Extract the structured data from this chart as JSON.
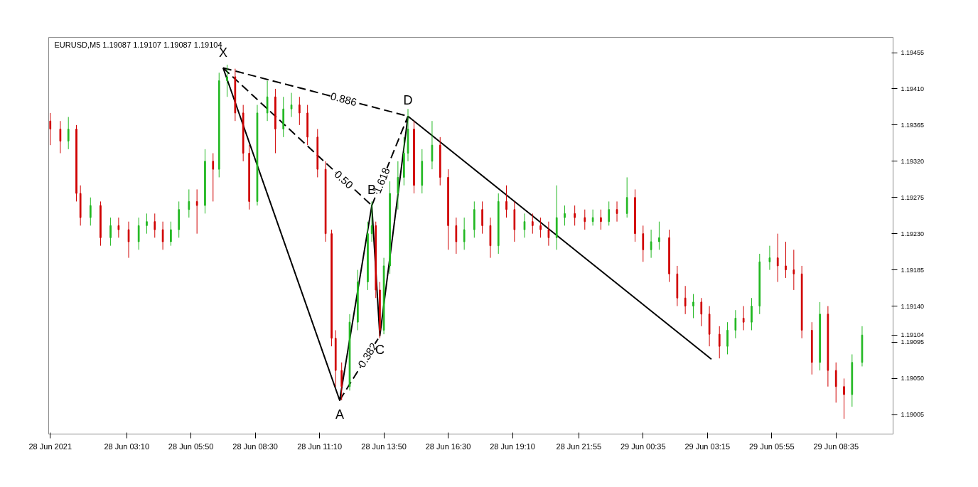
{
  "chart_data": {
    "type": "candlestick",
    "title": "EURUSD,M5  1.19087 1.19107 1.19087 1.19104",
    "x": [
      "2021-06-28T00:00",
      "2021-06-28T00:25",
      "2021-06-28T00:45",
      "2021-06-28T01:05",
      "2021-06-28T01:15",
      "2021-06-28T01:40",
      "2021-06-28T02:05",
      "2021-06-28T02:30",
      "2021-06-28T02:50",
      "2021-06-28T03:15",
      "2021-06-28T03:40",
      "2021-06-28T04:00",
      "2021-06-28T04:20",
      "2021-06-28T04:40",
      "2021-06-28T05:00",
      "2021-06-28T05:20",
      "2021-06-28T05:45",
      "2021-06-28T06:05",
      "2021-06-28T06:25",
      "2021-06-28T06:45",
      "2021-06-28T07:00",
      "2021-06-28T07:20",
      "2021-06-28T07:40",
      "2021-06-28T08:00",
      "2021-06-28T08:15",
      "2021-06-28T08:35",
      "2021-06-28T09:00",
      "2021-06-28T09:20",
      "2021-06-28T09:40",
      "2021-06-28T10:00",
      "2021-06-28T10:20",
      "2021-06-28T10:40",
      "2021-06-28T11:05",
      "2021-06-28T11:25",
      "2021-06-28T11:40",
      "2021-06-28T11:50",
      "2021-06-28T12:05",
      "2021-06-28T12:25",
      "2021-06-28T12:45",
      "2021-06-28T13:10",
      "2021-06-28T13:20",
      "2021-06-28T13:30",
      "2021-06-28T13:40",
      "2021-06-28T13:50",
      "2021-06-28T14:05",
      "2021-06-28T14:25",
      "2021-06-28T14:40",
      "2021-06-28T14:50",
      "2021-06-28T15:05",
      "2021-06-28T15:25",
      "2021-06-28T15:50",
      "2021-06-28T16:10",
      "2021-06-28T16:30",
      "2021-06-28T16:50",
      "2021-06-28T17:10",
      "2021-06-28T17:35",
      "2021-06-28T17:55",
      "2021-06-28T18:15",
      "2021-06-28T18:35",
      "2021-06-28T18:55",
      "2021-06-28T19:15",
      "2021-06-28T19:40",
      "2021-06-28T20:00",
      "2021-06-28T20:20",
      "2021-06-28T20:40",
      "2021-06-28T21:00",
      "2021-06-28T21:20",
      "2021-06-28T21:45",
      "2021-06-28T22:10",
      "2021-06-28T22:30",
      "2021-06-28T22:50",
      "2021-06-28T23:10",
      "2021-06-28T23:30",
      "2021-06-28T23:55",
      "2021-06-29T00:15",
      "2021-06-29T00:35",
      "2021-06-29T00:55",
      "2021-06-29T01:15",
      "2021-06-29T01:40",
      "2021-06-29T02:00",
      "2021-06-29T02:20",
      "2021-06-29T02:40",
      "2021-06-29T03:00",
      "2021-06-29T03:20",
      "2021-06-29T03:45",
      "2021-06-29T04:05",
      "2021-06-29T04:25",
      "2021-06-29T04:45",
      "2021-06-29T05:05",
      "2021-06-29T05:25",
      "2021-06-29T05:50",
      "2021-06-29T06:10",
      "2021-06-29T06:30",
      "2021-06-29T06:50",
      "2021-06-29T07:10",
      "2021-06-29T07:35",
      "2021-06-29T07:55",
      "2021-06-29T08:15",
      "2021-06-29T08:35",
      "2021-06-29T08:55",
      "2021-06-29T09:15",
      "2021-06-29T09:40"
    ],
    "ohlc": [
      [
        1.1937,
        1.1938,
        1.1934,
        1.1936
      ],
      [
        1.1936,
        1.1937,
        1.1933,
        1.19345
      ],
      [
        1.19345,
        1.19375,
        1.19335,
        1.1936
      ],
      [
        1.1936,
        1.19365,
        1.1927,
        1.1928
      ],
      [
        1.1928,
        1.1929,
        1.1924,
        1.1925
      ],
      [
        1.1925,
        1.19275,
        1.1924,
        1.19265
      ],
      [
        1.19265,
        1.1927,
        1.19215,
        1.19225
      ],
      [
        1.19225,
        1.1925,
        1.19215,
        1.1924
      ],
      [
        1.1924,
        1.1925,
        1.19225,
        1.19235
      ],
      [
        1.19235,
        1.19245,
        1.192,
        1.1922
      ],
      [
        1.1922,
        1.1925,
        1.1921,
        1.1924
      ],
      [
        1.1924,
        1.19255,
        1.1923,
        1.19245
      ],
      [
        1.19245,
        1.19255,
        1.19225,
        1.19235
      ],
      [
        1.19235,
        1.19245,
        1.1921,
        1.1922
      ],
      [
        1.1922,
        1.19245,
        1.19215,
        1.19235
      ],
      [
        1.19235,
        1.1927,
        1.19225,
        1.1926
      ],
      [
        1.1926,
        1.19285,
        1.1925,
        1.1927
      ],
      [
        1.1927,
        1.19285,
        1.1923,
        1.19265
      ],
      [
        1.19265,
        1.19335,
        1.19255,
        1.1932
      ],
      [
        1.1932,
        1.1933,
        1.1927,
        1.1931
      ],
      [
        1.1931,
        1.1943,
        1.193,
        1.1942
      ],
      [
        1.1942,
        1.1944,
        1.194,
        1.19425
      ],
      [
        1.19425,
        1.19435,
        1.1937,
        1.1938
      ],
      [
        1.1938,
        1.1939,
        1.1932,
        1.1933
      ],
      [
        1.1933,
        1.1934,
        1.1926,
        1.1927
      ],
      [
        1.1927,
        1.1939,
        1.19265,
        1.1938
      ],
      [
        1.1938,
        1.1942,
        1.1937,
        1.194
      ],
      [
        1.194,
        1.1941,
        1.1933,
        1.1936
      ],
      [
        1.1936,
        1.194,
        1.1935,
        1.19385
      ],
      [
        1.19385,
        1.19405,
        1.19375,
        1.1939
      ],
      [
        1.1939,
        1.194,
        1.19365,
        1.1938
      ],
      [
        1.1938,
        1.1939,
        1.1934,
        1.1935
      ],
      [
        1.1935,
        1.1936,
        1.193,
        1.1931
      ],
      [
        1.1931,
        1.1932,
        1.1922,
        1.1923
      ],
      [
        1.1923,
        1.19235,
        1.1909,
        1.191
      ],
      [
        1.191,
        1.1911,
        1.1904,
        1.1906
      ],
      [
        1.1906,
        1.1907,
        1.19023,
        1.1904
      ],
      [
        1.1904,
        1.1913,
        1.19035,
        1.1912
      ],
      [
        1.1912,
        1.19185,
        1.1911,
        1.1917
      ],
      [
        1.1917,
        1.19245,
        1.1916,
        1.1923
      ],
      [
        1.1923,
        1.1927,
        1.1922,
        1.1924
      ],
      [
        1.1924,
        1.19245,
        1.1915,
        1.1916
      ],
      [
        1.1916,
        1.1917,
        1.191,
        1.1911
      ],
      [
        1.1911,
        1.192,
        1.19105,
        1.1919
      ],
      [
        1.1919,
        1.19295,
        1.1918,
        1.1928
      ],
      [
        1.1928,
        1.1932,
        1.1926,
        1.193
      ],
      [
        1.193,
        1.1935,
        1.1929,
        1.1933
      ],
      [
        1.1933,
        1.19385,
        1.1932,
        1.1936
      ],
      [
        1.1936,
        1.1937,
        1.1928,
        1.1929
      ],
      [
        1.1929,
        1.19335,
        1.1928,
        1.1932
      ],
      [
        1.1932,
        1.1937,
        1.1931,
        1.1934
      ],
      [
        1.1934,
        1.1935,
        1.1929,
        1.193
      ],
      [
        1.193,
        1.1931,
        1.1921,
        1.1924
      ],
      [
        1.1924,
        1.1925,
        1.19205,
        1.1922
      ],
      [
        1.1922,
        1.1925,
        1.1921,
        1.19235
      ],
      [
        1.19235,
        1.1927,
        1.19225,
        1.1926
      ],
      [
        1.1926,
        1.1927,
        1.1923,
        1.1924
      ],
      [
        1.1924,
        1.1925,
        1.192,
        1.19215
      ],
      [
        1.19215,
        1.1928,
        1.19205,
        1.1927
      ],
      [
        1.1927,
        1.1929,
        1.1925,
        1.1926
      ],
      [
        1.1926,
        1.1927,
        1.1922,
        1.19235
      ],
      [
        1.19235,
        1.19255,
        1.19225,
        1.19245
      ],
      [
        1.19245,
        1.19255,
        1.1923,
        1.1924
      ],
      [
        1.1924,
        1.1925,
        1.19225,
        1.19235
      ],
      [
        1.19235,
        1.19245,
        1.19215,
        1.19225
      ],
      [
        1.19225,
        1.1929,
        1.1921,
        1.1925
      ],
      [
        1.1925,
        1.19265,
        1.1924,
        1.19255
      ],
      [
        1.19255,
        1.19265,
        1.1924,
        1.1925
      ],
      [
        1.1925,
        1.1926,
        1.19235,
        1.19245
      ],
      [
        1.19245,
        1.1926,
        1.1924,
        1.1925
      ],
      [
        1.1925,
        1.1926,
        1.19235,
        1.19245
      ],
      [
        1.19245,
        1.1927,
        1.1924,
        1.1926
      ],
      [
        1.1926,
        1.1927,
        1.19245,
        1.19255
      ],
      [
        1.19255,
        1.193,
        1.1925,
        1.19275
      ],
      [
        1.19275,
        1.19285,
        1.1922,
        1.1923
      ],
      [
        1.1923,
        1.1924,
        1.19195,
        1.1921
      ],
      [
        1.1921,
        1.19235,
        1.192,
        1.1922
      ],
      [
        1.1922,
        1.19245,
        1.1921,
        1.19225
      ],
      [
        1.19225,
        1.19235,
        1.1917,
        1.1918
      ],
      [
        1.1918,
        1.1919,
        1.1914,
        1.1915
      ],
      [
        1.1915,
        1.19165,
        1.1913,
        1.1914
      ],
      [
        1.1914,
        1.19155,
        1.19125,
        1.19145
      ],
      [
        1.19145,
        1.1915,
        1.19115,
        1.1913
      ],
      [
        1.1913,
        1.1914,
        1.1909,
        1.19105
      ],
      [
        1.19105,
        1.19115,
        1.19075,
        1.1909
      ],
      [
        1.1909,
        1.1912,
        1.1908,
        1.1911
      ],
      [
        1.1911,
        1.19135,
        1.191,
        1.19125
      ],
      [
        1.19125,
        1.1914,
        1.1911,
        1.1912
      ],
      [
        1.1912,
        1.1915,
        1.1911,
        1.1914
      ],
      [
        1.1914,
        1.19205,
        1.1913,
        1.19195
      ],
      [
        1.19195,
        1.19215,
        1.19185,
        1.192
      ],
      [
        1.192,
        1.1923,
        1.1917,
        1.1919
      ],
      [
        1.1919,
        1.1922,
        1.19175,
        1.19185
      ],
      [
        1.19185,
        1.1921,
        1.1916,
        1.1918
      ],
      [
        1.1918,
        1.1919,
        1.191,
        1.1911
      ],
      [
        1.1911,
        1.1912,
        1.19055,
        1.1907
      ],
      [
        1.1907,
        1.19145,
        1.1906,
        1.1913
      ],
      [
        1.1913,
        1.1914,
        1.1904,
        1.1906
      ],
      [
        1.1906,
        1.1907,
        1.1902,
        1.1904
      ],
      [
        1.1904,
        1.1905,
        1.19,
        1.1903
      ],
      [
        1.1903,
        1.1908,
        1.19015,
        1.1907
      ],
      [
        1.1907,
        1.19115,
        1.19065,
        1.19104
      ]
    ],
    "series": [
      {
        "type": "line",
        "color": "#000000",
        "line_style": "solid",
        "x": [
          "2021-06-28T07:10",
          "2021-06-28T12:00",
          "2021-06-28T13:20",
          "2021-06-28T13:40",
          "2021-06-28T14:50"
        ],
        "values": [
          1.19436,
          1.19023,
          1.19265,
          1.19103,
          1.19376
        ]
      },
      {
        "type": "line",
        "color": "#000000",
        "line_style": "dashed",
        "x": [
          "2021-06-28T07:10",
          "2021-06-28T13:20"
        ],
        "values": [
          1.19436,
          1.19265
        ]
      },
      {
        "type": "line",
        "color": "#000000",
        "line_style": "dashed",
        "x": [
          "2021-06-28T12:00",
          "2021-06-28T13:40"
        ],
        "values": [
          1.19023,
          1.19103
        ]
      },
      {
        "type": "line",
        "color": "#000000",
        "line_style": "dashed",
        "x": [
          "2021-06-28T13:20",
          "2021-06-28T14:50"
        ],
        "values": [
          1.19265,
          1.19376
        ]
      },
      {
        "type": "line",
        "color": "#000000",
        "line_style": "dashed",
        "x": [
          "2021-06-28T07:10",
          "2021-06-28T14:50"
        ],
        "values": [
          1.19436,
          1.19376
        ]
      },
      {
        "type": "line",
        "color": "#000000",
        "line_style": "solid",
        "x": [
          "2021-06-28T14:50",
          "2021-06-29T03:25"
        ],
        "values": [
          1.19376,
          1.19074
        ]
      }
    ],
    "annotations": [
      {
        "text": "X",
        "x": "2021-06-28T07:10",
        "y": 1.19436
      },
      {
        "text": "A",
        "x": "2021-06-28T12:00",
        "y": 1.19023
      },
      {
        "text": "B",
        "x": "2021-06-28T13:20",
        "y": 1.19265
      },
      {
        "text": "C",
        "x": "2021-06-28T13:40",
        "y": 1.19103
      },
      {
        "text": "D",
        "x": "2021-06-28T14:50",
        "y": 1.19376
      },
      {
        "text": "0.886",
        "x": "2021-06-28T12:10",
        "y": 1.19397
      },
      {
        "text": "0.50",
        "x": "2021-06-28T12:10",
        "y": 1.19297
      },
      {
        "text": "1.618",
        "x": "2021-06-28T13:45",
        "y": 1.19296
      },
      {
        "text": "0.382",
        "x": "2021-06-28T13:10",
        "y": 1.19079
      }
    ],
    "xlim": [
      "2021-06-27T23:56",
      "2021-06-29T10:57"
    ],
    "ylim": [
      1.18981,
      1.19474
    ],
    "xticks": [
      {
        "value": "2021-06-28T00:00",
        "label": "28 Jun 2021"
      },
      {
        "value": "2021-06-28T03:10",
        "label": "28 Jun 03:10"
      },
      {
        "value": "2021-06-28T05:50",
        "label": "28 Jun 05:50"
      },
      {
        "value": "2021-06-28T08:30",
        "label": "28 Jun 08:30"
      },
      {
        "value": "2021-06-28T11:10",
        "label": "28 Jun 11:10"
      },
      {
        "value": "2021-06-28T13:50",
        "label": "28 Jun 13:50"
      },
      {
        "value": "2021-06-28T16:30",
        "label": "28 Jun 16:30"
      },
      {
        "value": "2021-06-28T19:10",
        "label": "28 Jun 19:10"
      },
      {
        "value": "2021-06-28T21:55",
        "label": "28 Jun 21:55"
      },
      {
        "value": "2021-06-29T00:35",
        "label": "29 Jun 00:35"
      },
      {
        "value": "2021-06-29T03:15",
        "label": "29 Jun 03:15"
      },
      {
        "value": "2021-06-29T05:55",
        "label": "29 Jun 05:55"
      },
      {
        "value": "2021-06-29T08:35",
        "label": "29 Jun 08:35"
      }
    ],
    "yticks": [
      {
        "value": 1.19005,
        "label": "1.19005"
      },
      {
        "value": 1.1905,
        "label": "1.19050"
      },
      {
        "value": 1.19095,
        "label": "1.19095"
      },
      {
        "value": 1.19104,
        "label": "1.19104"
      },
      {
        "value": 1.1914,
        "label": "1.19140"
      },
      {
        "value": 1.19185,
        "label": "1.19185"
      },
      {
        "value": 1.1923,
        "label": "1.19230"
      },
      {
        "value": 1.19275,
        "label": "1.19275"
      },
      {
        "value": 1.1932,
        "label": "1.19320"
      },
      {
        "value": 1.19365,
        "label": "1.19365"
      },
      {
        "value": 1.1941,
        "label": "1.19410"
      },
      {
        "value": 1.19455,
        "label": "1.19455"
      }
    ]
  }
}
